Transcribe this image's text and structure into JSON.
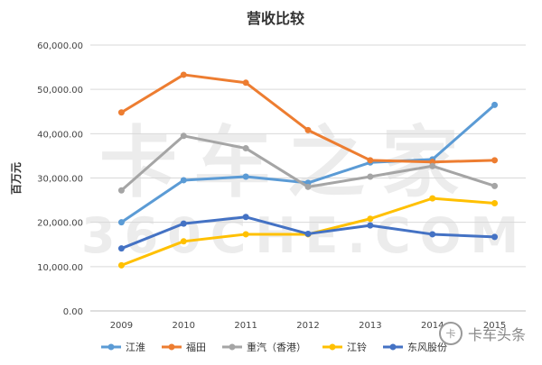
{
  "chart_data": {
    "type": "line",
    "title": "营收比较",
    "xlabel": "",
    "ylabel": "百万元",
    "x": [
      "2009",
      "2010",
      "2011",
      "2012",
      "2013",
      "2014",
      "2015"
    ],
    "ylim": [
      0,
      60000
    ],
    "yticks": [
      "0.00",
      "10,000.00",
      "20,000.00",
      "30,000.00",
      "40,000.00",
      "50,000.00",
      "60,000.00"
    ],
    "grid": true,
    "legend_position": "bottom",
    "series": [
      {
        "name": "江淮",
        "color": "#5b9bd5",
        "values": [
          20000,
          29500,
          30300,
          28900,
          33500,
          34200,
          46500
        ]
      },
      {
        "name": "福田",
        "color": "#ed7d31",
        "values": [
          44800,
          53300,
          51500,
          40800,
          34000,
          33600,
          34000
        ]
      },
      {
        "name": "重汽（香港）",
        "color": "#a5a5a5",
        "values": [
          27200,
          39500,
          36700,
          28000,
          30300,
          32700,
          28200
        ]
      },
      {
        "name": "江铃",
        "color": "#ffc000",
        "values": [
          10300,
          15700,
          17300,
          17300,
          20800,
          25400,
          24300
        ]
      },
      {
        "name": "东风股份",
        "color": "#4472c4",
        "values": [
          14100,
          19700,
          21200,
          17400,
          19300,
          17300,
          16700
        ]
      }
    ]
  },
  "watermark": {
    "line1": "卡车之家",
    "line2": "360CHE.COM"
  },
  "brand": {
    "logo_text": "卡",
    "name": "卡车头条"
  }
}
